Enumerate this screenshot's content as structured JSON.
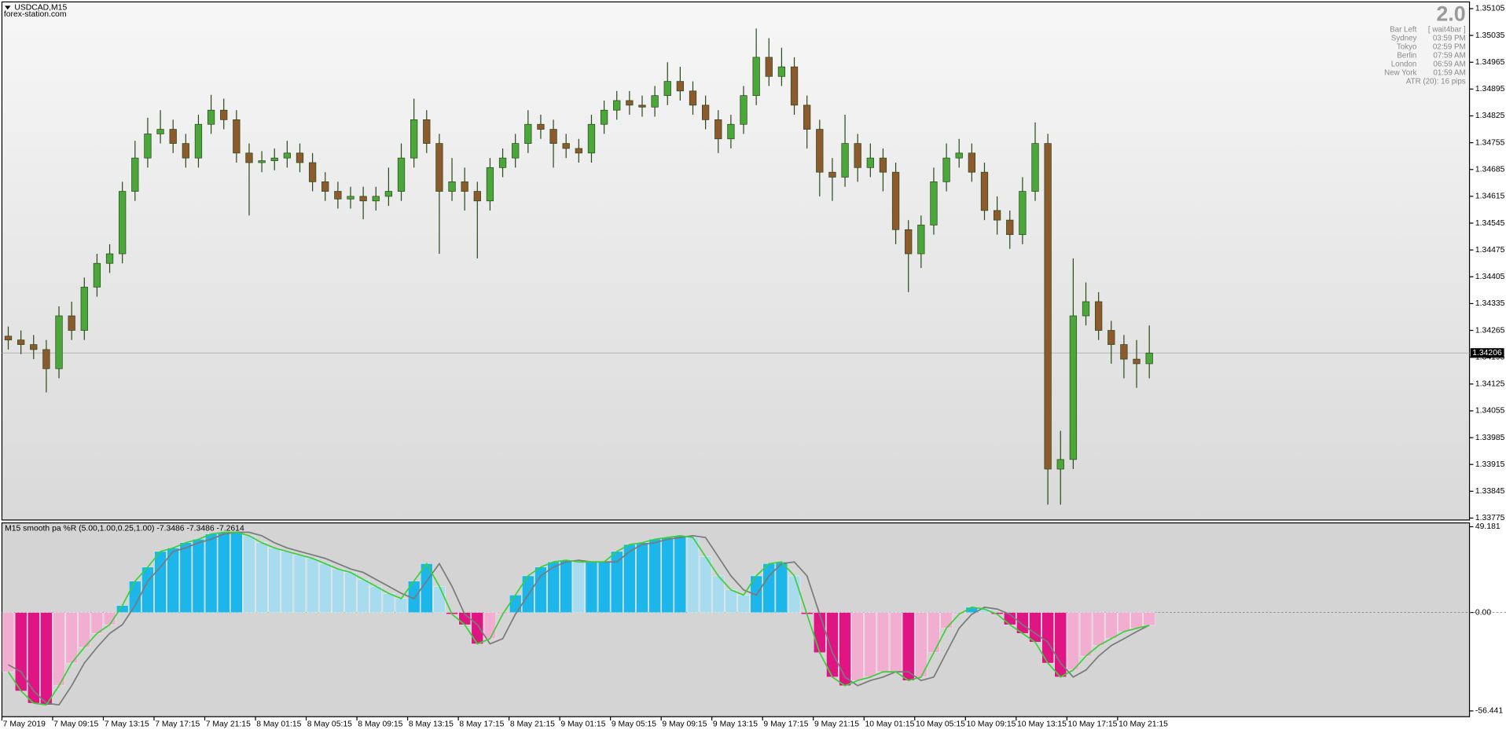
{
  "chart_data": [
    {
      "type": "candlestick",
      "title": "USDCAD,M15",
      "watermark": "forex-station.com",
      "info_panel": {
        "version": "2.0",
        "rows": [
          [
            "Bar Left",
            "[ wait4bar ]"
          ],
          [
            "Sydney",
            "03:59 PM"
          ],
          [
            "Tokyo",
            "02:59 PM"
          ],
          [
            "Berlin",
            "07:59 AM"
          ],
          [
            "London",
            "06:59 AM"
          ],
          [
            "New York",
            "01:59 AM"
          ]
        ],
        "atr": "ATR (20): 16 pips"
      },
      "categories": [
        "7 May 2019",
        null,
        null,
        null,
        "7 May 09:15",
        null,
        null,
        null,
        "7 May 13:15",
        null,
        null,
        null,
        "7 May 17:15",
        null,
        null,
        null,
        "7 May 21:15",
        null,
        null,
        null,
        "8 May 01:15",
        null,
        null,
        null,
        "8 May 05:15",
        null,
        null,
        null,
        "8 May 09:15",
        null,
        null,
        null,
        "8 May 13:15",
        null,
        null,
        null,
        "8 May 17:15",
        null,
        null,
        null,
        "8 May 21:15",
        null,
        null,
        null,
        "9 May 01:15",
        null,
        null,
        null,
        "9 May 05:15",
        null,
        null,
        null,
        "9 May 09:15",
        null,
        null,
        null,
        "9 May 13:15",
        null,
        null,
        null,
        "9 May 17:15",
        null,
        null,
        null,
        "9 May 21:15",
        null,
        null,
        null,
        "10 May 01:15",
        null,
        null,
        null,
        "10 May 05:15",
        null,
        null,
        null,
        "10 May 09:15",
        null,
        null,
        null,
        "10 May 13:15",
        null,
        null,
        null,
        "10 May 17:15",
        null,
        null,
        null,
        "10 May 21:15",
        null,
        null
      ],
      "open": [
        1.3425,
        1.3424,
        1.34228,
        1.34215,
        1.34165,
        1.34303,
        1.34265,
        1.34378,
        1.3444,
        1.34465,
        1.34628,
        1.34715,
        1.34778,
        1.3479,
        1.34753,
        1.34715,
        1.34803,
        1.3484,
        1.34815,
        1.34728,
        1.34703,
        1.34708,
        1.34715,
        1.34728,
        1.34703,
        1.34653,
        1.34628,
        1.34608,
        1.34615,
        1.34603,
        1.34615,
        1.34628,
        1.34715,
        1.34815,
        1.34753,
        1.34628,
        1.34653,
        1.34628,
        1.34603,
        1.3469,
        1.34715,
        1.34753,
        1.34803,
        1.3479,
        1.34753,
        1.3474,
        1.34728,
        1.34803,
        1.3484,
        1.34865,
        1.34853,
        1.34848,
        1.34878,
        1.34915,
        1.3489,
        1.34853,
        1.34815,
        1.34765,
        1.34803,
        1.34878,
        1.34978,
        1.34928,
        1.34953,
        1.34853,
        1.3479,
        1.34678,
        1.34665,
        1.34753,
        1.3469,
        1.34715,
        1.34678,
        1.34528,
        1.34465,
        1.3454,
        1.34653,
        1.34715,
        1.34728,
        1.34678,
        1.34578,
        1.34553,
        1.34515,
        1.34628,
        1.34753,
        1.33903,
        1.33928,
        1.34303,
        1.3434,
        1.34265,
        1.34228,
        1.3419,
        1.34178
      ],
      "high": [
        1.34275,
        1.34265,
        1.34253,
        1.3424,
        1.34328,
        1.3434,
        1.34403,
        1.34465,
        1.3449,
        1.34653,
        1.3476,
        1.3482,
        1.3484,
        1.34815,
        1.34778,
        1.34828,
        1.3488,
        1.3487,
        1.3484,
        1.34753,
        1.34733,
        1.3474,
        1.3476,
        1.34753,
        1.34728,
        1.34678,
        1.34653,
        1.3464,
        1.3464,
        1.3464,
        1.3469,
        1.34753,
        1.3487,
        1.3484,
        1.34778,
        1.34715,
        1.3469,
        1.34653,
        1.34715,
        1.3474,
        1.34778,
        1.3484,
        1.34828,
        1.34815,
        1.34778,
        1.34765,
        1.34828,
        1.34865,
        1.3489,
        1.3489,
        1.34878,
        1.34903,
        1.34965,
        1.34953,
        1.34915,
        1.34878,
        1.3484,
        1.34828,
        1.34903,
        1.35053,
        1.35028,
        1.35003,
        1.34978,
        1.34878,
        1.34815,
        1.34715,
        1.34828,
        1.34778,
        1.34753,
        1.3474,
        1.34703,
        1.34553,
        1.34565,
        1.3469,
        1.34753,
        1.34765,
        1.34753,
        1.34703,
        1.34615,
        1.34578,
        1.34665,
        1.34808,
        1.34778,
        1.34003,
        1.34453,
        1.3439,
        1.34365,
        1.3429,
        1.34253,
        1.3424,
        1.34278
      ],
      "low": [
        1.34215,
        1.34203,
        1.3419,
        1.34103,
        1.3414,
        1.3424,
        1.3424,
        1.34353,
        1.34415,
        1.3444,
        1.34603,
        1.3469,
        1.34753,
        1.34728,
        1.3469,
        1.3469,
        1.34778,
        1.3479,
        1.34703,
        1.34565,
        1.34678,
        1.34683,
        1.3469,
        1.34678,
        1.34628,
        1.34603,
        1.34583,
        1.34583,
        1.34555,
        1.34578,
        1.3459,
        1.34603,
        1.3469,
        1.34728,
        1.34465,
        1.34603,
        1.34578,
        1.34453,
        1.34578,
        1.34665,
        1.3469,
        1.34728,
        1.34765,
        1.3469,
        1.34715,
        1.34703,
        1.34703,
        1.34778,
        1.34815,
        1.34828,
        1.34823,
        1.34823,
        1.34853,
        1.34865,
        1.34828,
        1.3479,
        1.34728,
        1.3474,
        1.34778,
        1.34853,
        1.34903,
        1.34903,
        1.34828,
        1.3474,
        1.34615,
        1.34603,
        1.3464,
        1.34653,
        1.34665,
        1.34628,
        1.3449,
        1.34365,
        1.34428,
        1.34515,
        1.34628,
        1.3469,
        1.34653,
        1.34553,
        1.34515,
        1.34478,
        1.3449,
        1.34603,
        1.3381,
        1.3381,
        1.33903,
        1.34278,
        1.3424,
        1.34178,
        1.3414,
        1.34115,
        1.3414
      ],
      "close": [
        1.3424,
        1.34228,
        1.34215,
        1.34165,
        1.34303,
        1.34265,
        1.34378,
        1.3444,
        1.34465,
        1.34628,
        1.34715,
        1.34778,
        1.3479,
        1.34753,
        1.34715,
        1.34803,
        1.3484,
        1.34815,
        1.34728,
        1.34703,
        1.34708,
        1.34715,
        1.34728,
        1.34703,
        1.34653,
        1.34628,
        1.34608,
        1.34615,
        1.34603,
        1.34615,
        1.34628,
        1.34715,
        1.34815,
        1.34753,
        1.34628,
        1.34653,
        1.34628,
        1.34603,
        1.3469,
        1.34715,
        1.34753,
        1.34803,
        1.3479,
        1.34753,
        1.3474,
        1.34728,
        1.34803,
        1.3484,
        1.34865,
        1.34853,
        1.34848,
        1.34878,
        1.34915,
        1.3489,
        1.34853,
        1.34815,
        1.34765,
        1.34803,
        1.34878,
        1.34978,
        1.34928,
        1.34953,
        1.34853,
        1.3479,
        1.34678,
        1.34665,
        1.34753,
        1.3469,
        1.34715,
        1.34678,
        1.34528,
        1.34465,
        1.3454,
        1.34653,
        1.34715,
        1.34728,
        1.34678,
        1.34578,
        1.34553,
        1.34515,
        1.34628,
        1.34753,
        1.33903,
        1.33928,
        1.34303,
        1.3434,
        1.34265,
        1.34228,
        1.3419,
        1.34178,
        1.34206
      ],
      "up_color": "#4aa83a",
      "down_color": "#8c5a2c",
      "wick_color": "#2c4a1c",
      "current_price": 1.34206,
      "ylim": [
        1.33775,
        1.35105
      ],
      "yticks": [
        1.35105,
        1.35035,
        1.34965,
        1.34895,
        1.34825,
        1.34755,
        1.34685,
        1.34615,
        1.34545,
        1.34475,
        1.34405,
        1.34335,
        1.34265,
        1.34195,
        1.34125,
        1.34055,
        1.33985,
        1.33915,
        1.33845,
        1.33775
      ]
    },
    {
      "type": "bar",
      "label": "M15  smooth pa %R (5.00,1.00,0.25,1.00) -7.3486 -7.3486 -7.2614",
      "series": [
        {
          "color": "#3ccf3c",
          "values": [
            -34,
            -45,
            -52,
            -53,
            -42,
            -29,
            -20,
            -12,
            -7,
            4,
            18,
            26,
            35,
            37,
            40,
            42,
            45,
            46,
            46,
            44,
            40,
            37,
            35,
            33,
            31,
            28,
            25,
            23,
            19,
            15,
            11,
            8,
            18,
            28,
            15,
            -1,
            -7,
            -18,
            -15,
            -1,
            10,
            21,
            26,
            29,
            30,
            29,
            29,
            29,
            35,
            39,
            40,
            42,
            43,
            44,
            43,
            32,
            21,
            13,
            10,
            21,
            28,
            29,
            21,
            -1,
            -23,
            -37,
            -42,
            -39,
            -37,
            -34,
            -34,
            -39,
            -37,
            -23,
            -9,
            -1,
            3,
            2,
            -1,
            -7,
            -12,
            -17,
            -29,
            -37,
            -33,
            -25,
            -19,
            -15,
            -11,
            -9,
            -7.3486
          ]
        },
        {
          "color": "#7a7a7a",
          "values": [
            -30,
            -34,
            -45,
            -52,
            -53,
            -42,
            -29,
            -20,
            -12,
            -7,
            4,
            18,
            26,
            35,
            37,
            40,
            42,
            45,
            46,
            46,
            44,
            40,
            37,
            35,
            33,
            31,
            28,
            25,
            23,
            19,
            15,
            11,
            8,
            18,
            28,
            15,
            -1,
            -7,
            -18,
            -15,
            -1,
            10,
            21,
            26,
            29,
            30,
            29,
            29,
            29,
            35,
            39,
            40,
            42,
            43,
            44,
            43,
            32,
            21,
            13,
            10,
            21,
            28,
            29,
            21,
            -1,
            -23,
            -37,
            -42,
            -39,
            -37,
            -34,
            -34,
            -39,
            -37,
            -23,
            -9,
            -1,
            3,
            2,
            -1,
            -7,
            -12,
            -17,
            -29,
            -37,
            -33,
            -25,
            -19,
            -15,
            -11,
            -7.2614
          ]
        }
      ],
      "bar_colors": {
        "rising_positive": "#1cb6ea",
        "falling_positive": "#a9dbee",
        "falling_negative": "#df1584",
        "rising_negative": "#f1aed1"
      },
      "ylim": [
        -56.441,
        49.181
      ],
      "yticks": [
        49.181,
        {
          "value": 0,
          "label": "0.00"
        },
        -56.441
      ],
      "zero_line": true
    }
  ]
}
